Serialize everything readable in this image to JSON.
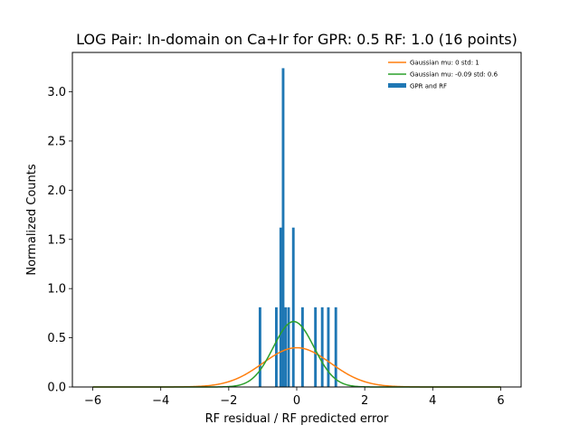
{
  "chart_data": {
    "type": "bar",
    "title": "LOG Pair: In-domain on Ca+Ir for GPR: 0.5 RF: 1.0 (16 points)",
    "xlabel": "RF residual / RF predicted error",
    "ylabel": "Normalized Counts",
    "xlim": [
      -6.6,
      6.6
    ],
    "ylim": [
      0,
      3.4
    ],
    "xticks": [
      -6,
      -4,
      -2,
      0,
      2,
      4,
      6
    ],
    "xtick_labels": [
      "−6",
      "−4",
      "−2",
      "0",
      "2",
      "4",
      "6"
    ],
    "yticks": [
      0.0,
      0.5,
      1.0,
      1.5,
      2.0,
      2.5,
      3.0
    ],
    "ytick_labels": [
      "0.0",
      "0.5",
      "1.0",
      "1.5",
      "2.0",
      "2.5",
      "3.0"
    ],
    "grid": false,
    "legend_position": "top-right",
    "histogram": {
      "name": "GPR and RF",
      "color": "#1f77b4",
      "bin_width": 0.077,
      "bars": [
        {
          "x": -1.08,
          "height": 0.81
        },
        {
          "x": -0.6,
          "height": 0.81
        },
        {
          "x": -0.47,
          "height": 1.62
        },
        {
          "x": -0.4,
          "height": 3.24
        },
        {
          "x": -0.33,
          "height": 0.81
        },
        {
          "x": -0.24,
          "height": 0.81
        },
        {
          "x": -0.1,
          "height": 1.62
        },
        {
          "x": 0.17,
          "height": 0.81
        },
        {
          "x": 0.55,
          "height": 0.81
        },
        {
          "x": 0.75,
          "height": 0.81
        },
        {
          "x": 0.93,
          "height": 0.81
        },
        {
          "x": 1.15,
          "height": 0.81
        }
      ]
    },
    "series": [
      {
        "name": "Gaussian mu: 0 std: 1",
        "type": "line",
        "color": "#ff7f0e",
        "mu": 0,
        "std": 1,
        "x_range": [
          -6,
          6
        ]
      },
      {
        "name": "Gaussian mu: -0.09 std: 0.6",
        "type": "line",
        "color": "#2ca02c",
        "mu": -0.09,
        "std": 0.6,
        "x_range": [
          -6,
          6
        ]
      }
    ]
  }
}
